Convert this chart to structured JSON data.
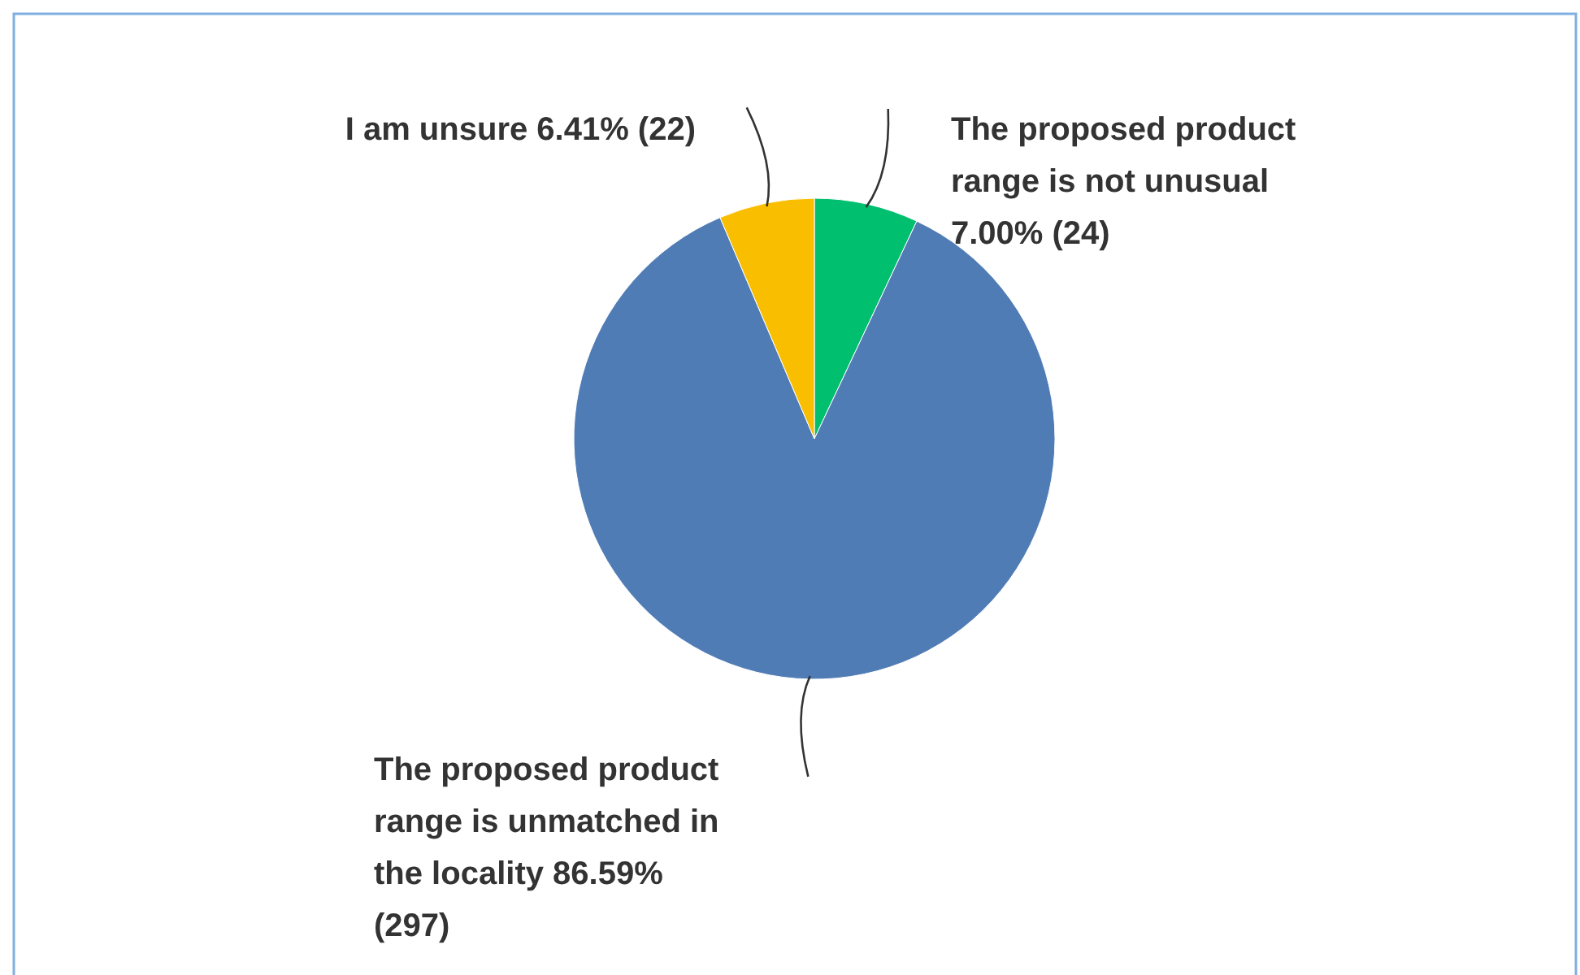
{
  "chart_data": {
    "type": "pie",
    "categories": [
      "The proposed product range is not unusual",
      "The proposed product range is unmatched in the locality",
      "I am unsure"
    ],
    "values": [
      24,
      297,
      22
    ],
    "value_labels": [
      "7.00% (24)",
      "86.59% (297)",
      "6.41% (22)"
    ],
    "colors": [
      "#00bf6f",
      "#507cb6",
      "#f9be00"
    ]
  }
}
